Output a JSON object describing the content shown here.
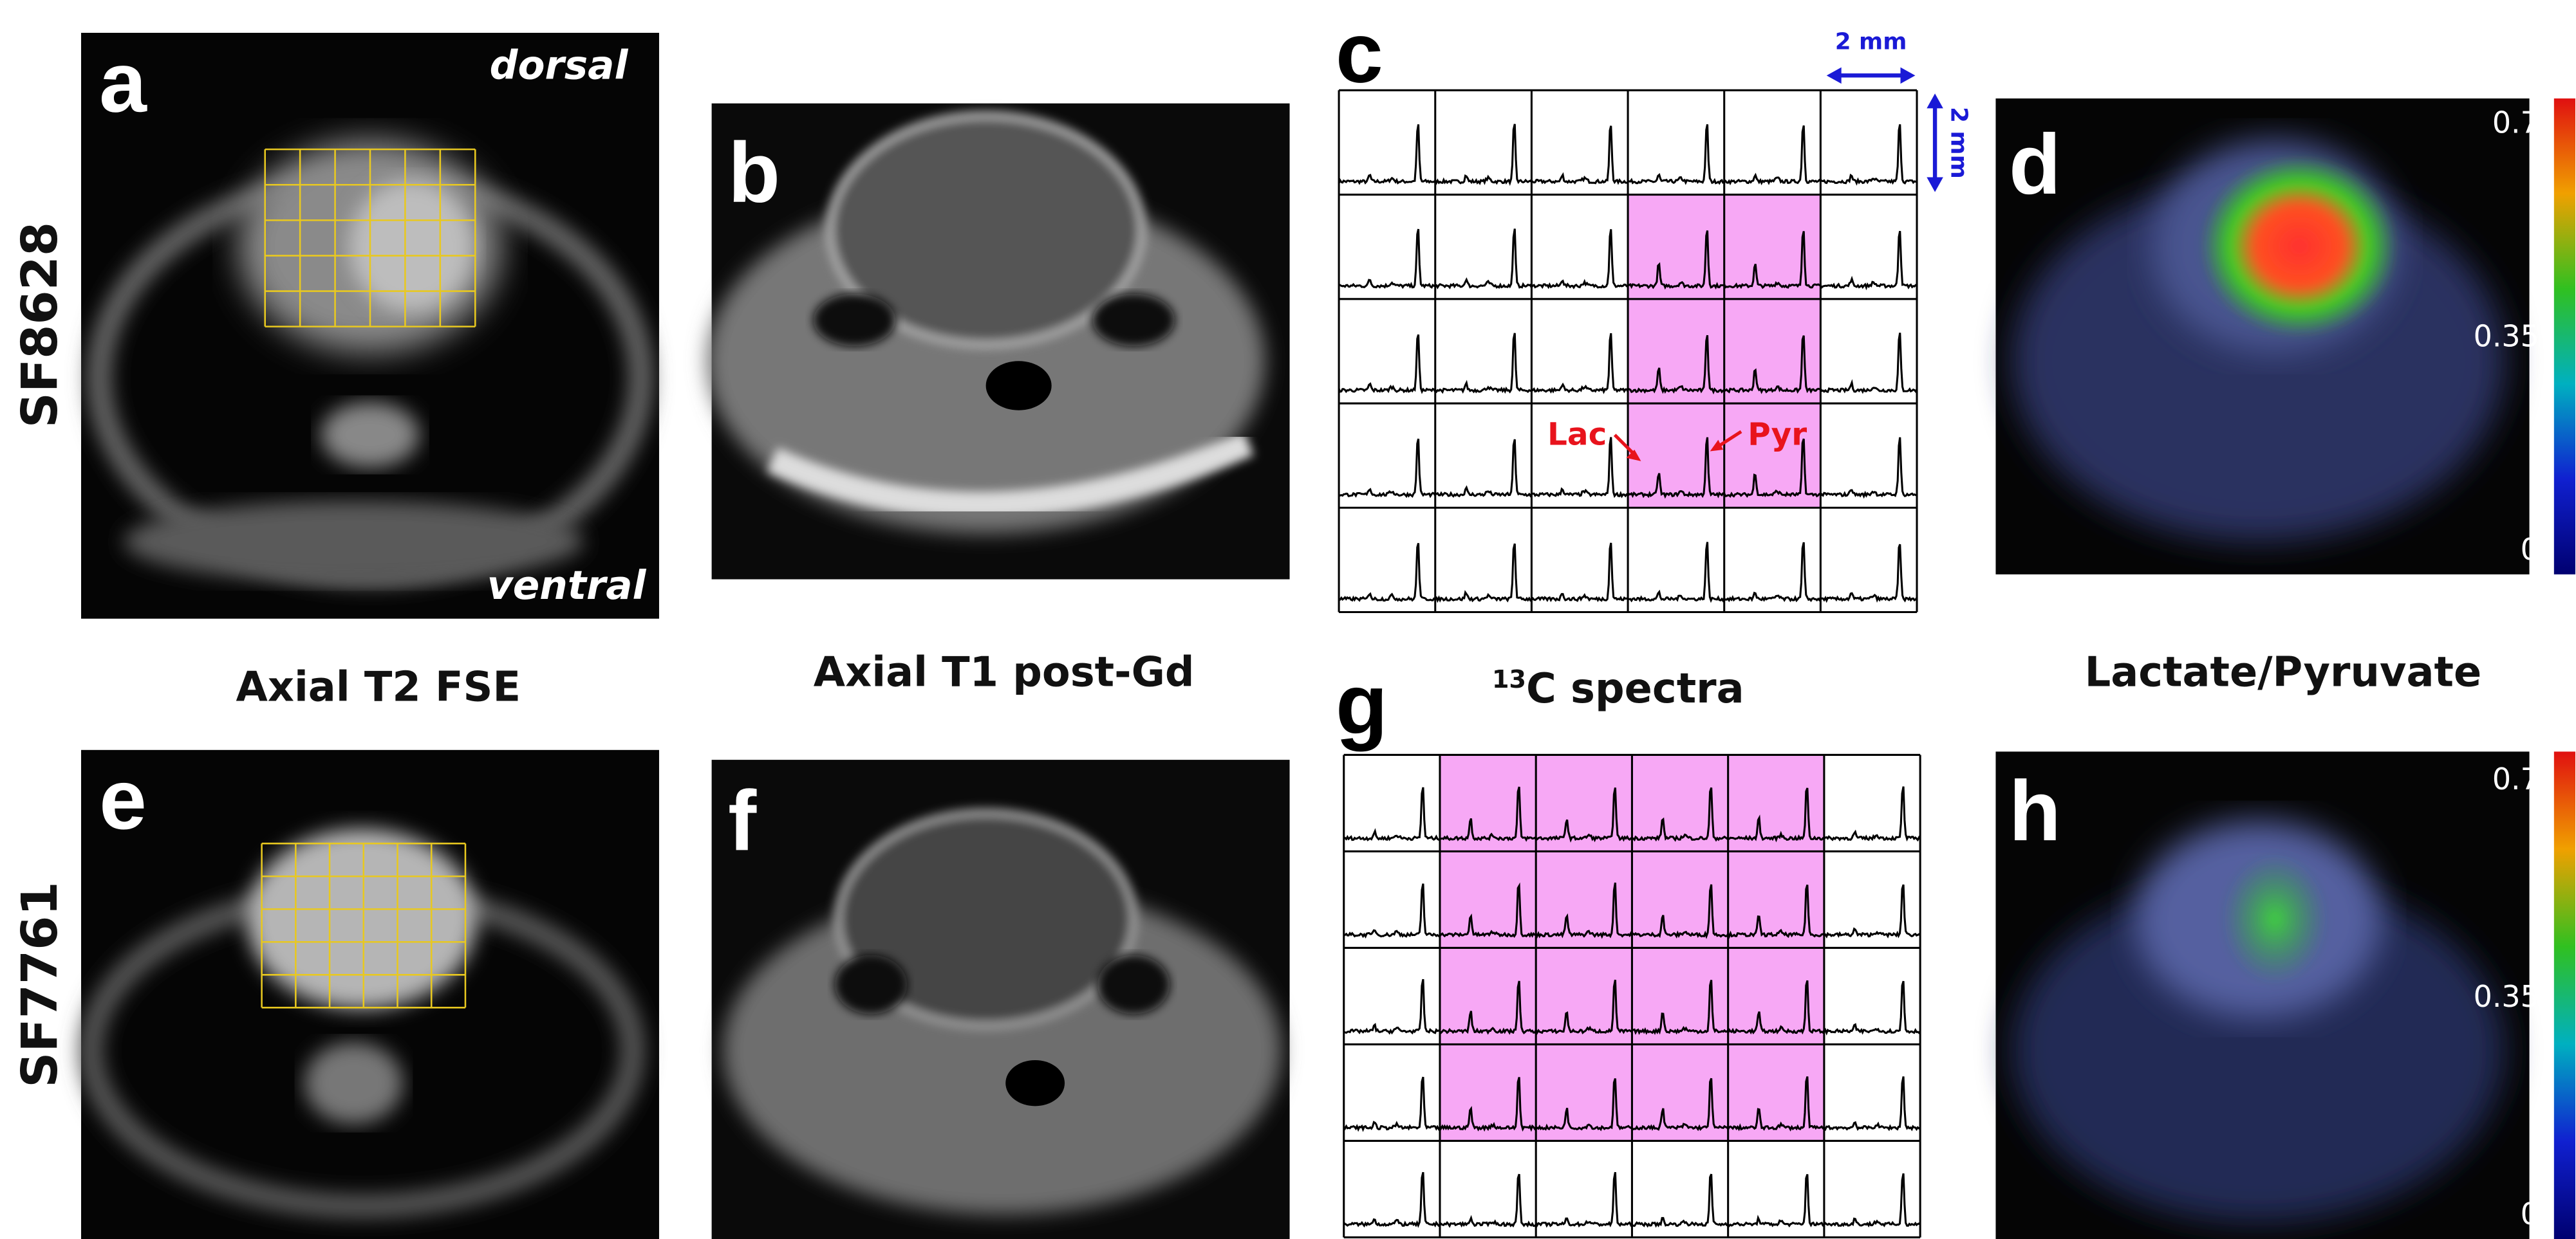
{
  "rows": [
    {
      "label": "SF8628"
    },
    {
      "label": "SF7761"
    }
  ],
  "panels": [
    "a",
    "b",
    "c",
    "d",
    "e",
    "f",
    "g",
    "h"
  ],
  "column_titles": [
    {
      "text": "Axial T2 FSE"
    },
    {
      "text": "Axial T1 post-Gd"
    },
    {
      "superscript": "13",
      "text": "C spectra"
    },
    {
      "text": "Lactate/Pyruvate"
    }
  ],
  "orientation": {
    "top": "dorsal",
    "bottom": "ventral"
  },
  "scale_bars": {
    "horizontal": "2 mm",
    "vertical": "2 mm"
  },
  "peak_labels": {
    "lactate": "Lac",
    "pyruvate": "Pyr"
  },
  "colorbars": [
    {
      "ticks": [
        0.7,
        0.35,
        0
      ]
    },
    {
      "ticks": [
        0.7,
        0.35,
        0
      ]
    }
  ]
}
